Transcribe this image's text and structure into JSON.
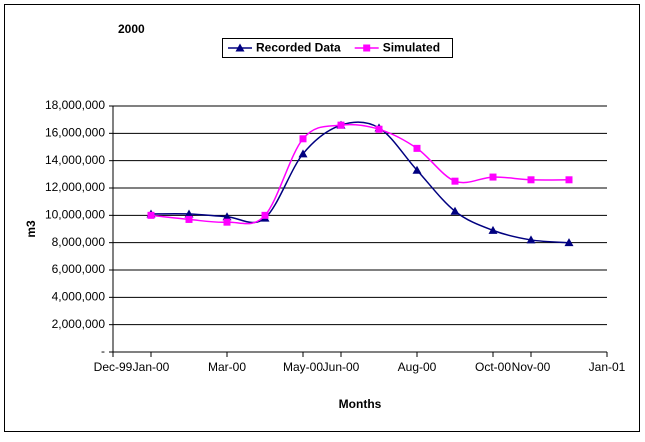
{
  "chart_data": {
    "type": "line",
    "title": "2000",
    "x_label": "Months",
    "y_label": "m3",
    "x": [
      "2000-01",
      "2000-02",
      "2000-03",
      "2000-04",
      "2000-05",
      "2000-06",
      "2000-07",
      "2000-08",
      "2000-09",
      "2000-10",
      "2000-11",
      "2000-12"
    ],
    "series": [
      {
        "name": "Recorded Data",
        "color": "#000080",
        "marker": "triangle",
        "values": [
          10100000,
          10100000,
          9900000,
          9800000,
          14500000,
          16600000,
          16400000,
          13300000,
          10300000,
          8900000,
          8200000,
          8000000
        ]
      },
      {
        "name": "Simulated",
        "color": "#ff00ff",
        "marker": "square",
        "values": [
          10000000,
          9700000,
          9500000,
          10000000,
          15600000,
          16600000,
          16300000,
          14900000,
          12500000,
          12800000,
          12600000,
          12600000
        ]
      }
    ],
    "xlim": [
      "1999-12",
      "2001-01"
    ],
    "xticks": [
      {
        "value": "1999-12",
        "label": "Dec-99"
      },
      {
        "value": "2000-01",
        "label": "Jan-00"
      },
      {
        "value": "2000-03",
        "label": "Mar-00"
      },
      {
        "value": "2000-05",
        "label": "May-00"
      },
      {
        "value": "2000-06",
        "label": "Jun-00"
      },
      {
        "value": "2000-08",
        "label": "Aug-00"
      },
      {
        "value": "2000-10",
        "label": "Oct-00"
      },
      {
        "value": "2000-11",
        "label": "Nov-00"
      },
      {
        "value": "2001-01",
        "label": "Jan-01"
      }
    ],
    "ylim": [
      0,
      18000000
    ],
    "yticks": [
      {
        "value": 0,
        "label": "-"
      },
      {
        "value": 2000000,
        "label": "2,000,000"
      },
      {
        "value": 4000000,
        "label": "4,000,000"
      },
      {
        "value": 6000000,
        "label": "6,000,000"
      },
      {
        "value": 8000000,
        "label": "8,000,000"
      },
      {
        "value": 10000000,
        "label": "10,000,000"
      },
      {
        "value": 12000000,
        "label": "12,000,000"
      },
      {
        "value": 14000000,
        "label": "14,000,000"
      },
      {
        "value": 16000000,
        "label": "16,000,000"
      },
      {
        "value": 18000000,
        "label": "18,000,000"
      }
    ],
    "grid": true,
    "smooth": true,
    "legend": "top"
  }
}
